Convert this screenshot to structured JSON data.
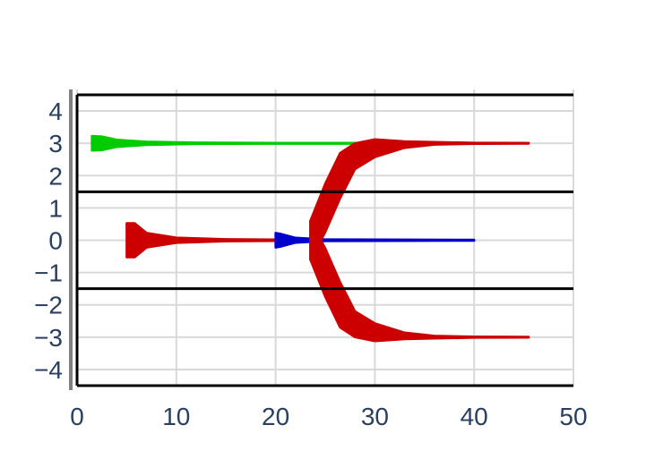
{
  "chart_data": {
    "type": "line",
    "title": "",
    "xlabel": "",
    "ylabel": "",
    "xlim": [
      0,
      50
    ],
    "ylim": [
      -4.5,
      4.5
    ],
    "x_ticks": [
      0,
      10,
      20,
      30,
      40,
      50
    ],
    "x_tick_labels": [
      "0",
      "10",
      "20",
      "30",
      "40",
      "50"
    ],
    "y_ticks": [
      4,
      3,
      2,
      1,
      0,
      -1,
      -2,
      -3,
      -4
    ],
    "y_tick_labels": [
      "4",
      "3",
      "2",
      "1",
      "0",
      "−1",
      "−2",
      "−3",
      "−4"
    ],
    "grid": true,
    "reference_lines": [
      1.5,
      -1.5
    ],
    "series": [
      {
        "color": "#00cc00",
        "points": [
          {
            "x": 1.5,
            "y": 3,
            "width": 0.45
          },
          {
            "x": 2.5,
            "y": 3,
            "width": 0.42
          },
          {
            "x": 4,
            "y": 3,
            "width": 0.22
          },
          {
            "x": 7,
            "y": 3,
            "width": 0.1
          },
          {
            "x": 12,
            "y": 3,
            "width": 0.04
          },
          {
            "x": 20,
            "y": 3,
            "width": 0.025
          },
          {
            "x": 42,
            "y": 3,
            "width": 0.02
          }
        ]
      },
      {
        "color": "#cc0000",
        "points": [
          {
            "x": 5,
            "y": 0,
            "width": 1.05
          },
          {
            "x": 5.8,
            "y": 0,
            "width": 1.05
          },
          {
            "x": 7,
            "y": 0,
            "width": 0.45
          },
          {
            "x": 10,
            "y": 0,
            "width": 0.16
          },
          {
            "x": 15,
            "y": 0,
            "width": 0.06
          },
          {
            "x": 20,
            "y": 0,
            "width": 0.04
          },
          {
            "x": 23,
            "y": 0,
            "width": 0.04
          }
        ]
      },
      {
        "color": "#0000cc",
        "points": [
          {
            "x": 20,
            "y": 0,
            "width": 0.45
          },
          {
            "x": 20.5,
            "y": 0,
            "width": 0.4
          },
          {
            "x": 22,
            "y": 0,
            "width": 0.15
          },
          {
            "x": 25,
            "y": 0,
            "width": 0.05
          },
          {
            "x": 40,
            "y": 0,
            "width": 0.03
          }
        ]
      },
      {
        "color": "#cc0000",
        "points": [
          {
            "x": 23.5,
            "y": 0,
            "width": 1.2
          },
          {
            "x": 25,
            "y": 1.0,
            "width": 1.5
          },
          {
            "x": 26.5,
            "y": 2.0,
            "width": 1.4
          },
          {
            "x": 28,
            "y": 2.6,
            "width": 0.8
          },
          {
            "x": 30,
            "y": 2.85,
            "width": 0.55
          },
          {
            "x": 33,
            "y": 2.96,
            "width": 0.2
          },
          {
            "x": 36,
            "y": 3.0,
            "width": 0.08
          },
          {
            "x": 40,
            "y": 3.0,
            "width": 0.03
          },
          {
            "x": 45.5,
            "y": 3.0,
            "width": 0.02
          }
        ]
      },
      {
        "color": "#cc0000",
        "points": [
          {
            "x": 23.5,
            "y": 0,
            "width": 1.2
          },
          {
            "x": 25,
            "y": -1.0,
            "width": 1.5
          },
          {
            "x": 26.5,
            "y": -2.0,
            "width": 1.4
          },
          {
            "x": 28,
            "y": -2.6,
            "width": 0.8
          },
          {
            "x": 30,
            "y": -2.85,
            "width": 0.55
          },
          {
            "x": 33,
            "y": -2.96,
            "width": 0.2
          },
          {
            "x": 36,
            "y": -3.0,
            "width": 0.08
          },
          {
            "x": 40,
            "y": -3.0,
            "width": 0.03
          },
          {
            "x": 45.5,
            "y": -3.0,
            "width": 0.02
          }
        ]
      }
    ]
  }
}
